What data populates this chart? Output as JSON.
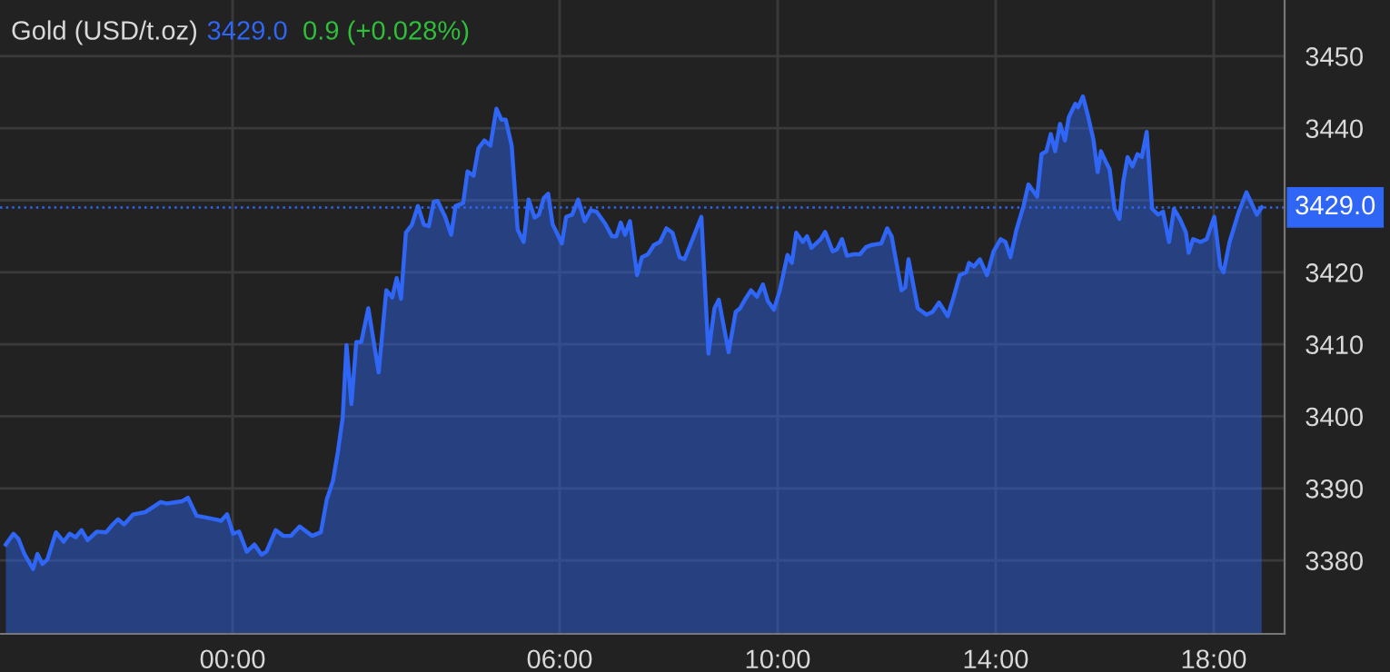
{
  "chart_data": {
    "type": "area",
    "title": "Gold (USD/t.oz)",
    "annotations": [
      "3429.0",
      "0.9 (+0.028%)"
    ],
    "series": [
      {
        "color": "#2f66f5",
        "x": [
          -4.16,
          -4.02,
          -3.93,
          -3.82,
          -3.66,
          -3.58,
          -3.49,
          -3.4,
          -3.24,
          -3.1,
          -2.99,
          -2.88,
          -2.77,
          -2.66,
          -2.49,
          -2.32,
          -2.21,
          -2.1,
          -1.99,
          -1.82,
          -1.6,
          -1.32,
          -1.21,
          -0.93,
          -0.82,
          -0.66,
          -0.32,
          -0.21,
          -0.1,
          0.01,
          0.12,
          0.26,
          0.4,
          0.53,
          0.62,
          0.79,
          0.93,
          1.07,
          1.23,
          1.46,
          1.62,
          1.73,
          1.84,
          1.93,
          2.02,
          2.09,
          2.18,
          2.27,
          2.36,
          2.49,
          2.68,
          2.82,
          2.93,
          3.01,
          3.09,
          3.18,
          3.29,
          3.4,
          3.51,
          3.6,
          3.69,
          3.76,
          3.9,
          4.01,
          4.09,
          4.23,
          4.31,
          4.42,
          4.51,
          4.62,
          4.73,
          4.84,
          4.93,
          5.01,
          5.12,
          5.23,
          5.34,
          5.43,
          5.54,
          5.62,
          5.71,
          5.79,
          5.87,
          6.04,
          6.12,
          6.23,
          6.34,
          6.46,
          6.57,
          6.68,
          6.84,
          6.96,
          7.04,
          7.12,
          7.2,
          7.29,
          7.42,
          7.51,
          7.62,
          7.73,
          7.84,
          7.96,
          8.07,
          8.2,
          8.29,
          8.46,
          8.6,
          8.73,
          8.84,
          8.92,
          9.1,
          9.23,
          9.31,
          9.4,
          9.51,
          9.62,
          9.73,
          9.82,
          9.93,
          10.04,
          10.18,
          10.26,
          10.34,
          10.46,
          10.54,
          10.62,
          10.79,
          10.87,
          11.01,
          11.09,
          11.18,
          11.27,
          11.4,
          11.51,
          11.62,
          11.73,
          11.9,
          12.01,
          12.09,
          12.27,
          12.34,
          12.4,
          12.57,
          12.73,
          12.84,
          12.96,
          13.12,
          13.23,
          13.34,
          13.46,
          13.51,
          13.6,
          13.71,
          13.84,
          13.96,
          14.09,
          14.18,
          14.27,
          14.38,
          14.51,
          14.6,
          14.76,
          14.84,
          14.93,
          15.01,
          15.09,
          15.18,
          15.27,
          15.34,
          15.46,
          15.51,
          15.6,
          15.69,
          15.79,
          15.87,
          15.93,
          16.01,
          16.09,
          16.18,
          16.27,
          16.34,
          16.42,
          16.51,
          16.6,
          16.68,
          16.77,
          16.87,
          16.98,
          17.07,
          17.18,
          17.27,
          17.38,
          17.49,
          17.54,
          17.62,
          17.76,
          17.87,
          18.01,
          18.12,
          18.18,
          18.29,
          18.46,
          18.6,
          18.79,
          18.88
        ],
        "values": [
          3382.2,
          3383.7,
          3383.0,
          3380.9,
          3378.8,
          3380.9,
          3379.5,
          3380.1,
          3383.9,
          3382.6,
          3383.7,
          3383.2,
          3384.2,
          3382.8,
          3384.0,
          3383.9,
          3384.9,
          3385.7,
          3385.0,
          3386.4,
          3386.7,
          3388.1,
          3387.9,
          3388.2,
          3388.7,
          3386.2,
          3385.7,
          3385.5,
          3386.4,
          3383.7,
          3384.0,
          3381.2,
          3382.2,
          3380.8,
          3381.2,
          3384.2,
          3383.4,
          3383.4,
          3384.7,
          3383.4,
          3383.9,
          3388.5,
          3391.0,
          3395.0,
          3399.8,
          3409.9,
          3401.7,
          3410.3,
          3410.3,
          3415.0,
          3406.1,
          3417.5,
          3416.5,
          3419.2,
          3416.3,
          3425.5,
          3426.6,
          3429.2,
          3426.6,
          3426.4,
          3429.8,
          3429.9,
          3427.7,
          3425.2,
          3429.2,
          3429.6,
          3434.0,
          3433.4,
          3437.2,
          3438.3,
          3437.6,
          3442.7,
          3441.2,
          3441.2,
          3437.6,
          3425.9,
          3424.2,
          3430.1,
          3427.6,
          3428.0,
          3430.3,
          3430.9,
          3426.7,
          3424.0,
          3427.7,
          3428.0,
          3430.1,
          3427.1,
          3428.6,
          3428.4,
          3426.7,
          3425.0,
          3425.0,
          3426.9,
          3425.2,
          3427.1,
          3419.6,
          3422.1,
          3422.5,
          3423.8,
          3424.2,
          3426.1,
          3425.5,
          3422.1,
          3421.8,
          3425.0,
          3427.7,
          3408.7,
          3415.0,
          3416.2,
          3408.9,
          3414.5,
          3415.0,
          3416.2,
          3417.5,
          3416.6,
          3418.3,
          3416.0,
          3414.8,
          3417.5,
          3422.4,
          3421.3,
          3425.5,
          3424.2,
          3425.0,
          3423.4,
          3424.6,
          3425.6,
          3422.9,
          3423.2,
          3424.6,
          3422.3,
          3422.5,
          3422.5,
          3423.5,
          3423.8,
          3424.0,
          3426.1,
          3425.0,
          3417.5,
          3417.9,
          3421.8,
          3415.0,
          3414.1,
          3414.5,
          3415.8,
          3413.9,
          3416.6,
          3419.6,
          3420.0,
          3421.3,
          3420.8,
          3421.8,
          3419.6,
          3422.9,
          3424.6,
          3424.2,
          3422.1,
          3425.9,
          3429.2,
          3432.2,
          3430.5,
          3436.4,
          3436.8,
          3439.2,
          3436.8,
          3440.6,
          3438.3,
          3441.5,
          3443.4,
          3442.9,
          3444.4,
          3441.8,
          3438.5,
          3433.9,
          3436.8,
          3435.5,
          3434.3,
          3428.8,
          3427.4,
          3432.6,
          3436.0,
          3434.7,
          3436.4,
          3436.0,
          3439.5,
          3428.8,
          3428.0,
          3428.4,
          3424.2,
          3428.8,
          3427.4,
          3425.5,
          3422.7,
          3424.6,
          3424.2,
          3424.6,
          3427.7,
          3420.8,
          3420.0,
          3424.2,
          3428.4,
          3431.1,
          3428.0,
          3429.0
        ]
      }
    ],
    "xlim": [
      -4.267,
      19.3
    ],
    "xticks": [
      {
        "value": 0,
        "label": "00:00"
      },
      {
        "value": 6,
        "label": "06:00"
      },
      {
        "value": 10,
        "label": "10:00"
      },
      {
        "value": 14,
        "label": "14:00"
      },
      {
        "value": 18,
        "label": "18:00"
      }
    ],
    "ylim": [
      3369.8,
      3457.8
    ],
    "yticks": [
      3380,
      3390,
      3400,
      3410,
      3420,
      {
        "value": 3430,
        "label": null
      },
      3440,
      3450
    ],
    "ref_lines": [
      {
        "axis": "y",
        "value": 3429.0,
        "label": "3429.0",
        "color": "#2f66f5",
        "line_style": "dotted"
      }
    ],
    "grid": true,
    "legend": false
  }
}
